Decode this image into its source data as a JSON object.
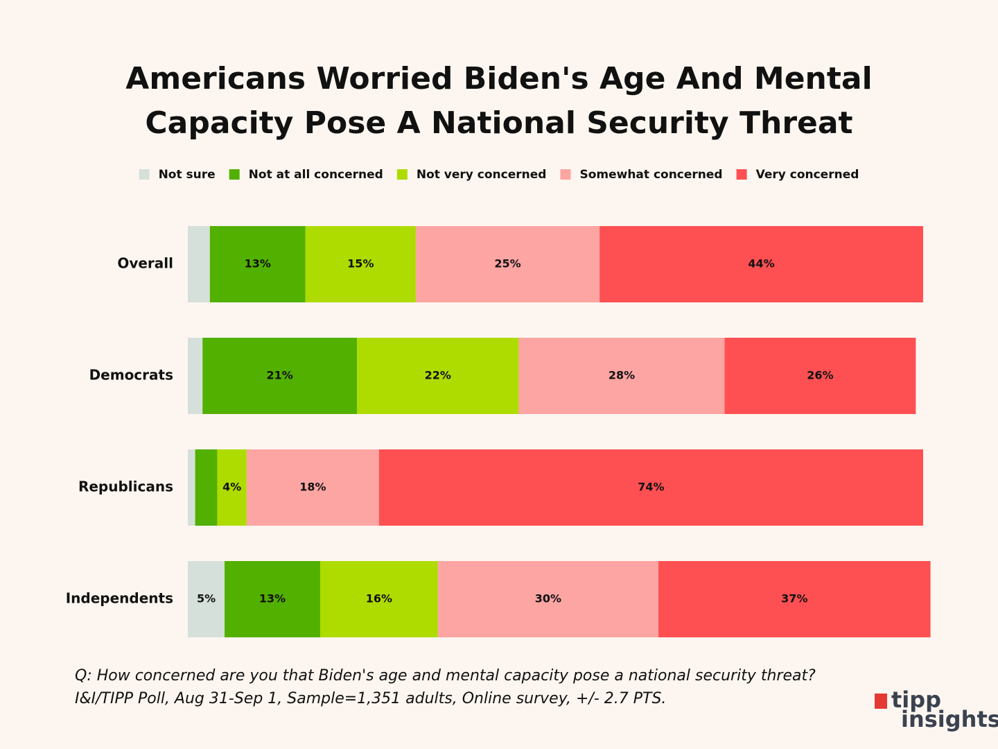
{
  "chart_data": {
    "type": "stacked-bar-horizontal",
    "title": "Americans Worried Biden's Age And Mental Capacity Pose A National Security Threat",
    "categories": [
      "Overall",
      "Democrats",
      "Republicans",
      "Independents"
    ],
    "xlim": [
      0,
      100
    ],
    "legend": "top",
    "series": [
      {
        "name": "Not sure",
        "color": "#d6e0da",
        "values": [
          3,
          2,
          1,
          5
        ],
        "value_labels": [
          null,
          null,
          null,
          "5%"
        ]
      },
      {
        "name": "Not at all concerned",
        "color": "#52b000",
        "values": [
          13,
          21,
          3,
          13
        ],
        "value_labels": [
          "13%",
          "21%",
          null,
          "13%"
        ]
      },
      {
        "name": "Not very concerned",
        "color": "#aedc00",
        "values": [
          15,
          22,
          4,
          16
        ],
        "value_labels": [
          "15%",
          "22%",
          "4%",
          "16%"
        ]
      },
      {
        "name": "Somewhat concerned",
        "color": "#fca5a3",
        "values": [
          25,
          28,
          18,
          30
        ],
        "value_labels": [
          "25%",
          "28%",
          "18%",
          "30%"
        ]
      },
      {
        "name": "Very concerned",
        "color": "#fe5052",
        "values": [
          44,
          26,
          74,
          37
        ],
        "value_labels": [
          "44%",
          "26%",
          "74%",
          "37%"
        ]
      }
    ]
  },
  "footer": {
    "question": "Q: How concerned are you that Biden's age and mental capacity pose a national security threat?",
    "source": "I&I/TIPP Poll, Aug 31-Sep 1, Sample=1,351 adults, Online survey, +/- 2.7 PTS.",
    "logo_top": "tipp",
    "logo_bottom": "insights"
  }
}
